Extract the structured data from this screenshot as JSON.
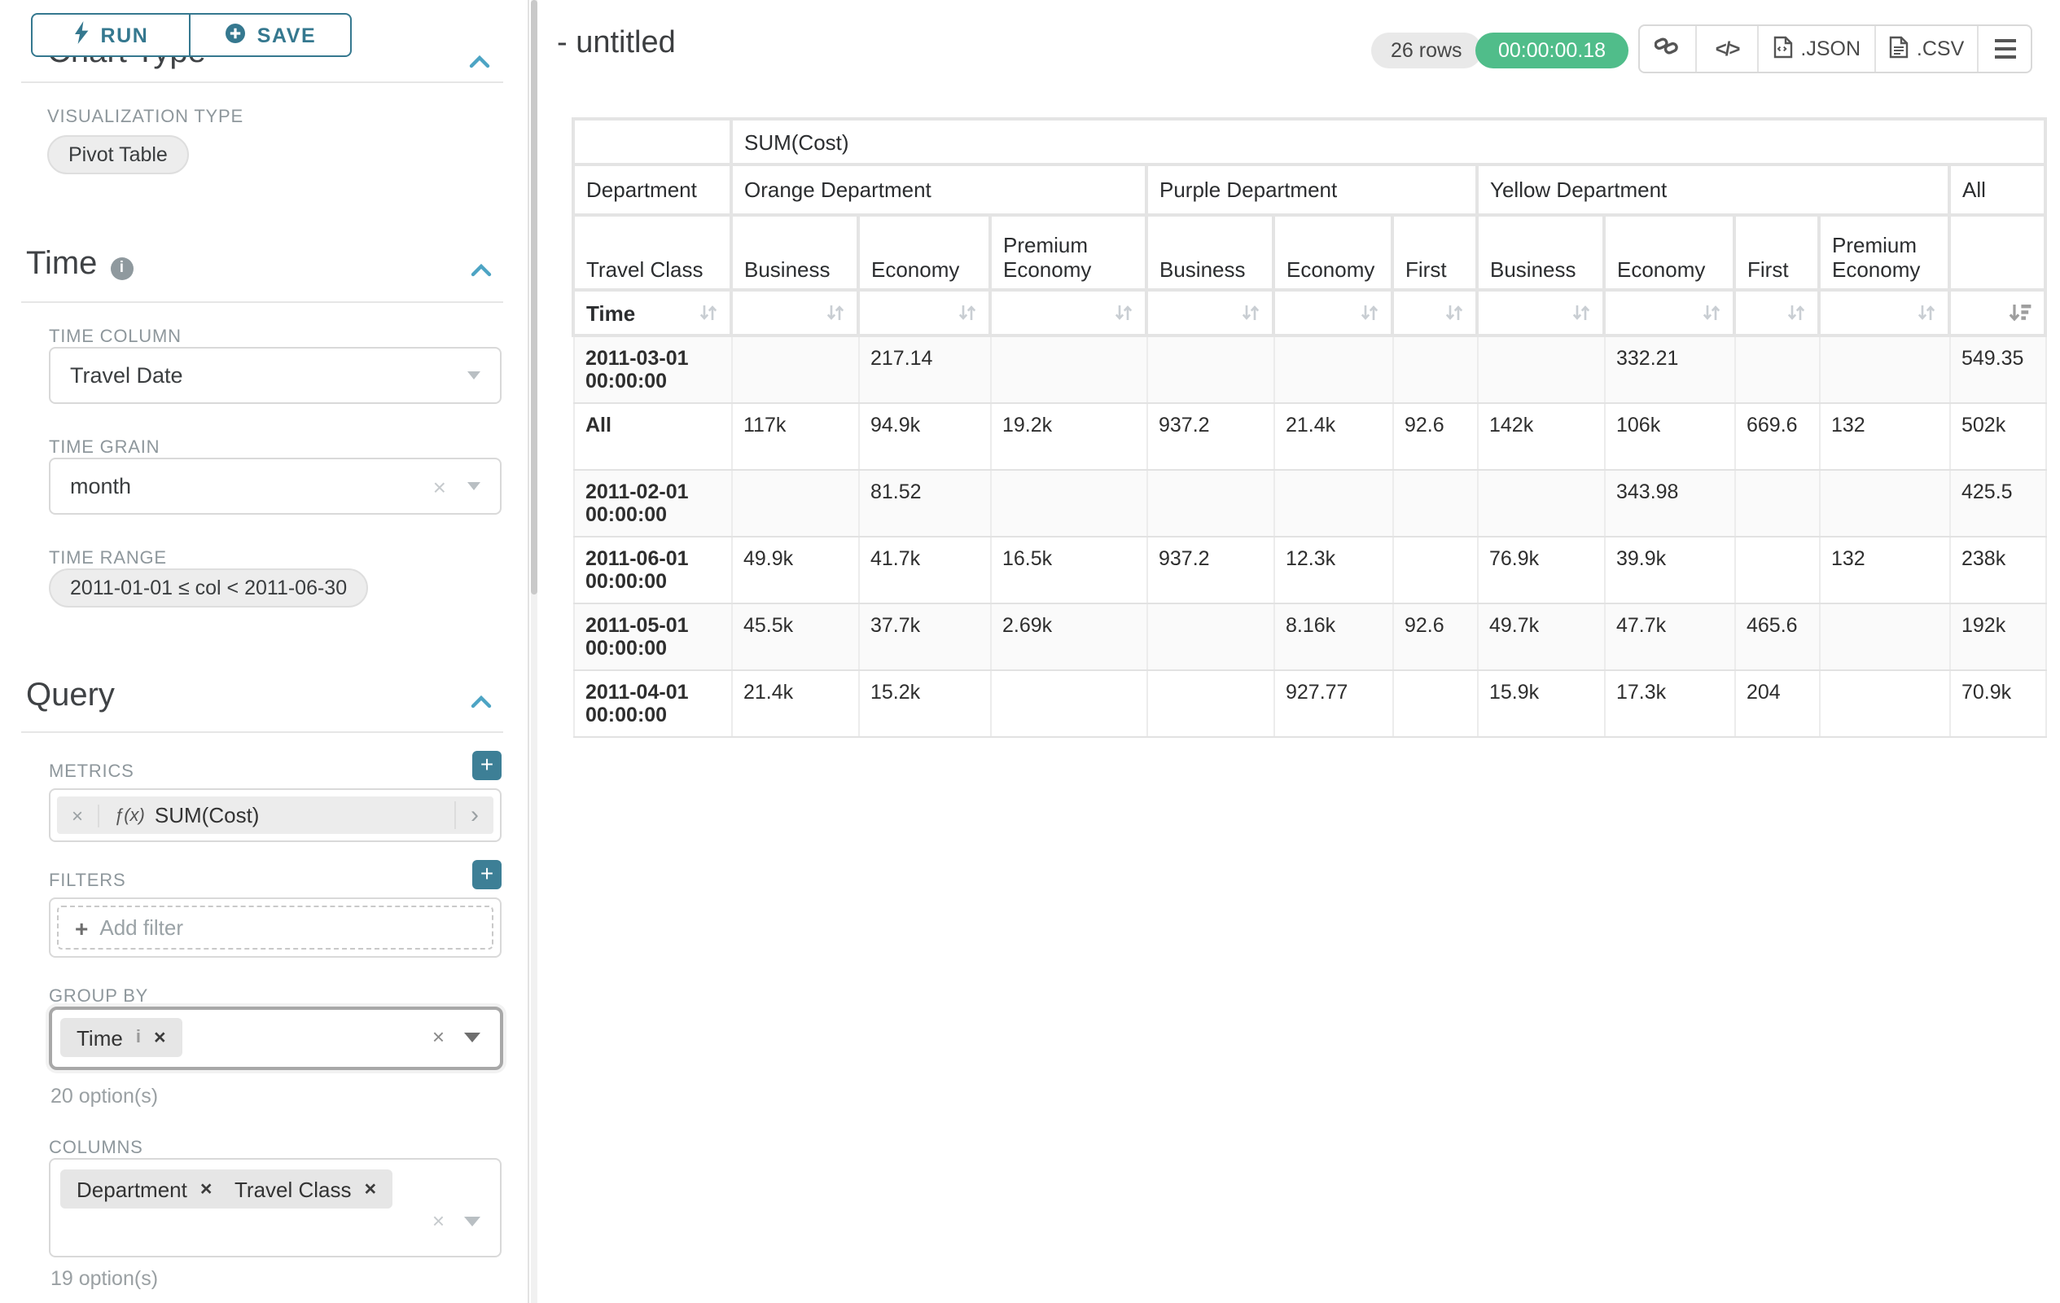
{
  "sidebar": {
    "run_label": "RUN",
    "save_label": "SAVE",
    "chart_type_heading": "Chart Type",
    "visualization_type_label": "VISUALIZATION TYPE",
    "visualization_type_value": "Pivot Table",
    "time": {
      "heading": "Time",
      "time_column_label": "TIME COLUMN",
      "time_column_value": "Travel Date",
      "time_grain_label": "TIME GRAIN",
      "time_grain_value": "month",
      "time_range_label": "TIME RANGE",
      "time_range_value": "2011-01-01 ≤ col < 2011-06-30"
    },
    "query": {
      "heading": "Query",
      "metrics_label": "METRICS",
      "metric_fx": "ƒ(x)",
      "metric_value": "SUM(Cost)",
      "filters_label": "FILTERS",
      "add_filter_label": "Add filter",
      "group_by_label": "GROUP BY",
      "group_by_values": [
        "Time"
      ],
      "group_by_option_count": "20 option(s)",
      "columns_label": "COLUMNS",
      "columns_values": [
        "Department",
        "Travel Class"
      ],
      "columns_option_count": "19 option(s)"
    },
    "icons": {
      "run": "lightning-bolt",
      "save": "plus-circle",
      "section_info": "info-circle",
      "section_collapse": "chevron-up",
      "add": "plus-square",
      "remove": "x",
      "expand_metric": "chevron-right",
      "dropdown": "caret-down"
    }
  },
  "header": {
    "title": "- untitled",
    "rows_badge": "26 rows",
    "timer_badge": "00:00:00.18",
    "json_label": ".JSON",
    "csv_label": ".CSV",
    "icons": [
      "link",
      "code",
      "file-json",
      "file-csv",
      "menu"
    ]
  },
  "chart_data": {
    "type": "table",
    "metric_header": "SUM(Cost)",
    "row_dimension": "Time",
    "column_dimension_labels": [
      "Department",
      "Travel Class"
    ],
    "column_groups": [
      {
        "department": "Orange Department",
        "classes": [
          "Business",
          "Economy",
          "Premium Economy"
        ]
      },
      {
        "department": "Purple Department",
        "classes": [
          "Business",
          "Economy",
          "First"
        ]
      },
      {
        "department": "Yellow Department",
        "classes": [
          "Business",
          "Economy",
          "First",
          "Premium Economy"
        ]
      },
      {
        "department": "All",
        "classes": [
          ""
        ]
      }
    ],
    "sorted_column_index": 10,
    "sort_direction": "descending",
    "rows": [
      {
        "label": "2011-03-01 00:00:00",
        "values": [
          "",
          "217.14",
          "",
          "",
          "",
          "",
          "",
          "332.21",
          "",
          "",
          "549.35"
        ]
      },
      {
        "label": "All",
        "values": [
          "117k",
          "94.9k",
          "19.2k",
          "937.2",
          "21.4k",
          "92.6",
          "142k",
          "106k",
          "669.6",
          "132",
          "502k"
        ]
      },
      {
        "label": "2011-02-01 00:00:00",
        "values": [
          "",
          "81.52",
          "",
          "",
          "",
          "",
          "",
          "343.98",
          "",
          "",
          "425.5"
        ]
      },
      {
        "label": "2011-06-01 00:00:00",
        "values": [
          "49.9k",
          "41.7k",
          "16.5k",
          "937.2",
          "12.3k",
          "",
          "76.9k",
          "39.9k",
          "",
          "132",
          "238k"
        ]
      },
      {
        "label": "2011-05-01 00:00:00",
        "values": [
          "45.5k",
          "37.7k",
          "2.69k",
          "",
          "8.16k",
          "92.6",
          "49.7k",
          "47.7k",
          "465.6",
          "",
          "192k"
        ]
      },
      {
        "label": "2011-04-01 00:00:00",
        "values": [
          "21.4k",
          "15.2k",
          "",
          "",
          "927.77",
          "",
          "15.9k",
          "17.3k",
          "204",
          "",
          "70.9k"
        ]
      }
    ]
  }
}
